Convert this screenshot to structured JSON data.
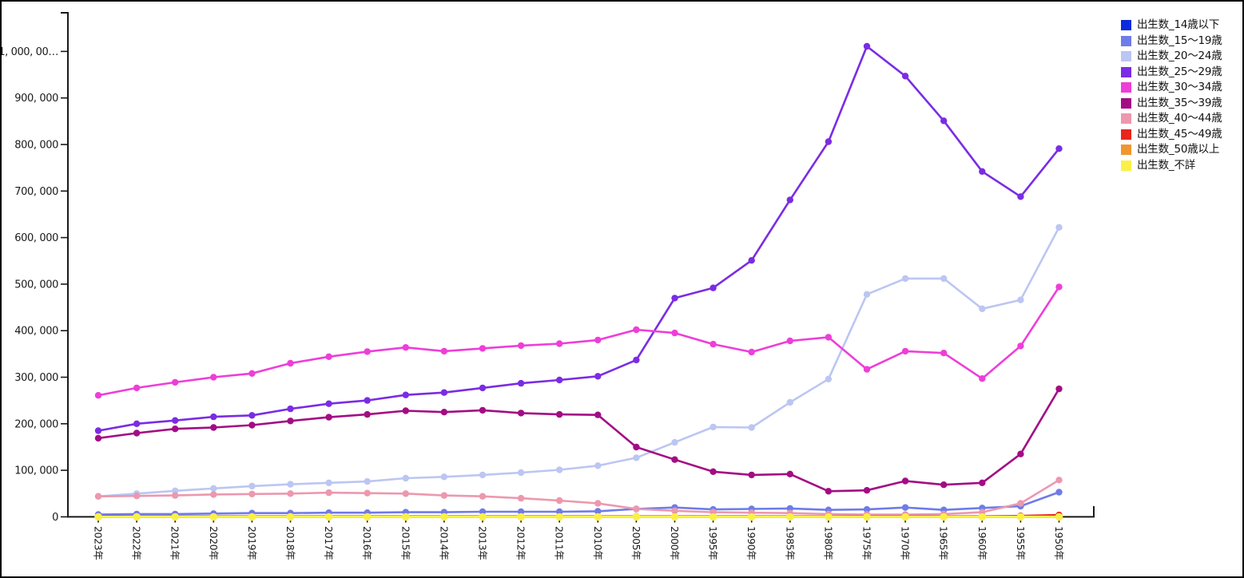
{
  "chart_data": {
    "type": "line",
    "title": "",
    "xlabel": "",
    "ylabel": "",
    "grid": false,
    "legend_position": "top-right-outside",
    "x_axis": {
      "categories": [
        "2023年",
        "2022年",
        "2021年",
        "2020年",
        "2019年",
        "2018年",
        "2017年",
        "2016年",
        "2015年",
        "2014年",
        "2013年",
        "2012年",
        "2011年",
        "2010年",
        "2005年",
        "2000年",
        "1995年",
        "1990年",
        "1985年",
        "1980年",
        "1975年",
        "1970年",
        "1965年",
        "1960年",
        "1955年",
        "1950年"
      ],
      "label_rotation_deg": 90
    },
    "y_axis": {
      "min": 0,
      "max": 1083000,
      "tick_step": 100000,
      "tick_labels": [
        "0",
        "100, 000",
        "200, 000",
        "300, 000",
        "400, 000",
        "500, 000",
        "600, 000",
        "700, 000",
        "800, 000",
        "900, 000",
        "1, 000, 00…"
      ]
    },
    "axis_color": "#1a1a1a",
    "series": [
      {
        "name": "出生数_14歳以下",
        "color": "#0a2ae0",
        "values": [
          0,
          0,
          0,
          0,
          0,
          0,
          0,
          0,
          0,
          0,
          0,
          0,
          0,
          0,
          0,
          0,
          0,
          0,
          0,
          0,
          0,
          0,
          0,
          0,
          0,
          0
        ]
      },
      {
        "name": "出生数_15～19歳",
        "color": "#6e7ce8",
        "values": [
          5000,
          6000,
          6000,
          7000,
          8000,
          8000,
          9000,
          9000,
          10000,
          10000,
          11000,
          11000,
          11000,
          12000,
          17000,
          20000,
          16000,
          17000,
          18000,
          15000,
          16000,
          20000,
          15000,
          19000,
          23000,
          53000
        ]
      },
      {
        "name": "出生数_20～24歳",
        "color": "#bcc6f2",
        "values": [
          44000,
          50000,
          56000,
          61000,
          66000,
          70000,
          73000,
          76000,
          83000,
          86000,
          90000,
          95000,
          101000,
          110000,
          127000,
          160000,
          193000,
          192000,
          246000,
          296000,
          478000,
          512000,
          512000,
          447000,
          466000,
          622000
        ]
      },
      {
        "name": "出生数_25～29歳",
        "color": "#7a2ce4",
        "values": [
          185000,
          200000,
          207000,
          215000,
          218000,
          232000,
          243000,
          250000,
          262000,
          267000,
          277000,
          287000,
          294000,
          302000,
          337000,
          470000,
          492000,
          551000,
          681000,
          806000,
          1011000,
          947000,
          851000,
          742000,
          688000,
          791000
        ]
      },
      {
        "name": "出生数_30～34歳",
        "color": "#ee3ed8",
        "values": [
          261000,
          277000,
          289000,
          300000,
          308000,
          330000,
          344000,
          355000,
          364000,
          356000,
          362000,
          368000,
          372000,
          380000,
          402000,
          395000,
          371000,
          354000,
          378000,
          386000,
          317000,
          356000,
          352000,
          297000,
          367000,
          494000
        ]
      },
      {
        "name": "出生数_35～39歳",
        "color": "#a30c84",
        "values": [
          169000,
          180000,
          189000,
          192000,
          197000,
          206000,
          214000,
          220000,
          228000,
          225000,
          229000,
          223000,
          220000,
          219000,
          150000,
          123000,
          97000,
          90000,
          92000,
          55000,
          57000,
          77000,
          69000,
          73000,
          135000,
          275000
        ]
      },
      {
        "name": "出生数_40～44歳",
        "color": "#ec98ae",
        "values": [
          44000,
          45000,
          46000,
          48000,
          49000,
          50000,
          52000,
          51000,
          50000,
          46000,
          44000,
          40000,
          35000,
          29000,
          17000,
          13000,
          10000,
          9000,
          8000,
          6000,
          5000,
          5000,
          6000,
          10000,
          29000,
          79000
        ]
      },
      {
        "name": "出生数_45～49歳",
        "color": "#e8261c",
        "values": [
          1200,
          1200,
          1200,
          1200,
          1200,
          1200,
          1200,
          1200,
          1200,
          1200,
          1200,
          1200,
          1200,
          1200,
          1200,
          1200,
          1200,
          1200,
          1200,
          1200,
          1200,
          1200,
          1200,
          1200,
          2000,
          4000
        ]
      },
      {
        "name": "出生数_50歳以上",
        "color": "#f0952f",
        "values": [
          0,
          0,
          0,
          0,
          0,
          0,
          0,
          0,
          0,
          0,
          0,
          0,
          0,
          0,
          0,
          0,
          0,
          0,
          0,
          0,
          0,
          0,
          0,
          0,
          0,
          0
        ]
      },
      {
        "name": "出生数_不詳",
        "color": "#fbf048",
        "values": [
          0,
          0,
          0,
          0,
          0,
          0,
          0,
          0,
          0,
          0,
          0,
          0,
          0,
          0,
          0,
          0,
          0,
          0,
          0,
          0,
          0,
          0,
          0,
          0,
          0,
          0
        ]
      }
    ]
  }
}
